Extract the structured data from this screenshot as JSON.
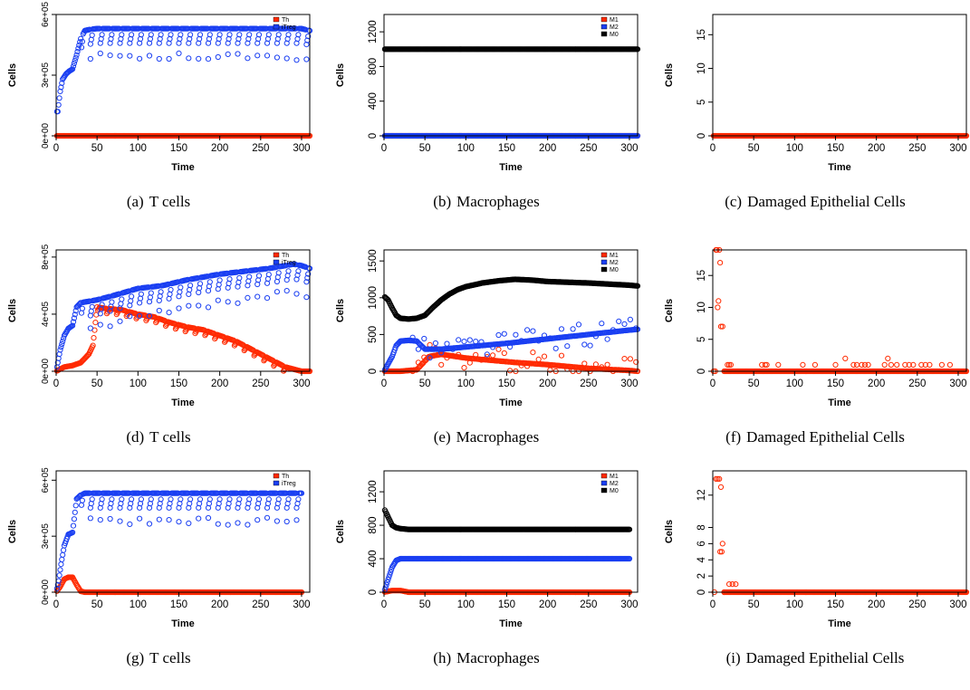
{
  "colors": {
    "Th": "#ff2a00",
    "iTreg": "#1a3ff2",
    "M1": "#ff2a00",
    "M2": "#1a3ff2",
    "M0": "#000000",
    "damaged": "#ff2a00"
  },
  "panels": [
    {
      "id": "(a)",
      "caption": "T cells",
      "chart_data": {
        "type": "scatter",
        "xlabel": "Time",
        "ylabel": "Cells",
        "xlim": [
          0,
          310
        ],
        "ylim": [
          0,
          600000
        ],
        "xticks": [
          0,
          50,
          100,
          150,
          200,
          250,
          300
        ],
        "yticks": [
          0,
          300000,
          600000
        ],
        "ytick_labels": [
          "0e+00",
          "3e+05",
          "6e+05"
        ],
        "legend": {
          "position": "top-right",
          "entries": [
            "Th",
            "iTreg"
          ]
        },
        "series": [
          {
            "name": "Th",
            "color_key": "Th",
            "model": "const",
            "value": 0
          },
          {
            "name": "iTreg",
            "color_key": "iTreg",
            "model": "treg_saw",
            "x": [
              2,
              5,
              8,
              12,
              16,
              20,
              25,
              30,
              35,
              40,
              45,
              50,
              60,
              70,
              80,
              90,
              100,
              130,
              160,
              200,
              250,
              300,
              310
            ],
            "y": [
              120000,
              220000,
              280000,
              305000,
              320000,
              330000,
              400000,
              480000,
              520000,
              525000,
              528000,
              530000,
              530000,
              530000,
              530000,
              530000,
              530000,
              530000,
              530000,
              530000,
              530000,
              530000,
              520000
            ]
          }
        ]
      }
    },
    {
      "id": "(b)",
      "caption": "Macrophages",
      "chart_data": {
        "type": "scatter",
        "xlabel": "Time",
        "ylabel": "Cells",
        "xlim": [
          0,
          310
        ],
        "ylim": [
          0,
          1400
        ],
        "xticks": [
          0,
          50,
          100,
          150,
          200,
          250,
          300
        ],
        "yticks": [
          0,
          400,
          800,
          1200
        ],
        "legend": {
          "position": "top-right",
          "entries": [
            "M1",
            "M2",
            "M0"
          ]
        },
        "series": [
          {
            "name": "M1",
            "color_key": "M1",
            "model": "const",
            "value": 0
          },
          {
            "name": "M2",
            "color_key": "M2",
            "model": "const",
            "value": 0
          },
          {
            "name": "M0",
            "color_key": "M0",
            "model": "const",
            "value": 1000
          }
        ]
      }
    },
    {
      "id": "(c)",
      "caption": "Damaged Epithelial Cells",
      "chart_data": {
        "type": "scatter",
        "xlabel": "Time",
        "ylabel": "Cells",
        "xlim": [
          0,
          310
        ],
        "ylim": [
          0,
          18
        ],
        "xticks": [
          0,
          50,
          100,
          150,
          200,
          250,
          300
        ],
        "yticks": [
          0,
          5,
          10,
          15
        ],
        "series": [
          {
            "name": "Damaged",
            "color_key": "damaged",
            "model": "const",
            "value": 0
          }
        ]
      }
    },
    {
      "id": "(d)",
      "caption": "T cells",
      "chart_data": {
        "type": "scatter",
        "xlabel": "Time",
        "ylabel": "Cells",
        "xlim": [
          0,
          310
        ],
        "ylim": [
          0,
          850000
        ],
        "xticks": [
          0,
          50,
          100,
          150,
          200,
          250,
          300
        ],
        "yticks": [
          0,
          400000,
          800000
        ],
        "ytick_labels": [
          "0e+00",
          "4e+05",
          "8e+05"
        ],
        "legend": {
          "position": "top-right",
          "entries": [
            "Th",
            "iTreg"
          ]
        },
        "series": [
          {
            "name": "Th",
            "color_key": "Th",
            "model": "th_saw",
            "x": [
              0,
              10,
              20,
              30,
              40,
              45,
              50,
              60,
              80,
              100,
              120,
              140,
              160,
              180,
              200,
              220,
              240,
              260,
              280,
              300,
              310
            ],
            "y": [
              0,
              30000,
              40000,
              60000,
              120000,
              180000,
              450000,
              440000,
              430000,
              400000,
              380000,
              340000,
              310000,
              290000,
              250000,
              210000,
              150000,
              90000,
              30000,
              0,
              0
            ]
          },
          {
            "name": "iTreg",
            "color_key": "iTreg",
            "model": "treg_saw",
            "x": [
              0,
              5,
              10,
              15,
              20,
              25,
              30,
              40,
              50,
              70,
              100,
              130,
              160,
              200,
              230,
              260,
              290,
              300,
              310
            ],
            "y": [
              0,
              150000,
              250000,
              300000,
              320000,
              450000,
              480000,
              490000,
              500000,
              530000,
              580000,
              600000,
              640000,
              680000,
              700000,
              720000,
              750000,
              740000,
              720000
            ]
          }
        ]
      }
    },
    {
      "id": "(e)",
      "caption": "Macrophages",
      "chart_data": {
        "type": "scatter",
        "xlabel": "Time",
        "ylabel": "Cells",
        "xlim": [
          0,
          310
        ],
        "ylim": [
          0,
          1650
        ],
        "xticks": [
          0,
          50,
          100,
          150,
          200,
          250,
          300
        ],
        "yticks": [
          0,
          500,
          1000,
          1500
        ],
        "legend": {
          "position": "top-right",
          "entries": [
            "M1",
            "M2",
            "M0"
          ]
        },
        "series": [
          {
            "name": "M1",
            "color_key": "M1",
            "model": "noisy",
            "x": [
              0,
              20,
              40,
              55,
              70,
              100,
              130,
              160,
              200,
              250,
              300,
              310
            ],
            "y": [
              0,
              0,
              20,
              200,
              230,
              180,
              150,
              120,
              90,
              40,
              10,
              0
            ]
          },
          {
            "name": "M2",
            "color_key": "M2",
            "model": "noisy",
            "x": [
              0,
              10,
              15,
              20,
              30,
              40,
              50,
              70,
              100,
              150,
              200,
              250,
              300,
              310
            ],
            "y": [
              0,
              200,
              350,
              410,
              420,
              410,
              300,
              300,
              330,
              380,
              440,
              500,
              560,
              570
            ]
          },
          {
            "name": "M0",
            "color_key": "M0",
            "model": "smooth",
            "x": [
              0,
              5,
              10,
              15,
              20,
              30,
              40,
              50,
              60,
              70,
              80,
              90,
              100,
              120,
              140,
              160,
              180,
              200,
              250,
              300,
              310
            ],
            "y": [
              1020,
              970,
              860,
              760,
              720,
              710,
              720,
              760,
              870,
              970,
              1050,
              1110,
              1150,
              1200,
              1230,
              1250,
              1240,
              1220,
              1200,
              1170,
              1160
            ]
          }
        ]
      }
    },
    {
      "id": "(f)",
      "caption": "Damaged Epithelial Cells",
      "chart_data": {
        "type": "scatter",
        "xlabel": "Time",
        "ylabel": "Cells",
        "xlim": [
          0,
          310
        ],
        "ylim": [
          0,
          19
        ],
        "xticks": [
          0,
          50,
          100,
          150,
          200,
          250,
          300
        ],
        "yticks": [
          0,
          5,
          10,
          15
        ],
        "series": [
          {
            "name": "Damaged",
            "color_key": "damaged",
            "model": "points_then_zero",
            "points": [
              [
                1,
                0
              ],
              [
                3,
                0
              ],
              [
                4,
                19
              ],
              [
                5,
                19
              ],
              [
                6,
                10
              ],
              [
                7,
                11
              ],
              [
                8,
                19
              ],
              [
                9,
                17
              ],
              [
                10,
                7
              ],
              [
                12,
                7
              ],
              [
                18,
                1
              ],
              [
                20,
                1
              ],
              [
                22,
                1
              ],
              [
                60,
                1
              ],
              [
                64,
                1
              ],
              [
                66,
                1
              ],
              [
                80,
                1
              ],
              [
                110,
                1
              ],
              [
                125,
                1
              ],
              [
                150,
                1
              ],
              [
                162,
                2
              ],
              [
                172,
                1
              ],
              [
                176,
                1
              ],
              [
                182,
                1
              ],
              [
                186,
                1
              ],
              [
                190,
                1
              ],
              [
                210,
                1
              ],
              [
                214,
                2
              ],
              [
                218,
                1
              ],
              [
                225,
                1
              ],
              [
                235,
                1
              ],
              [
                240,
                1
              ],
              [
                245,
                1
              ],
              [
                255,
                1
              ],
              [
                260,
                1
              ],
              [
                265,
                1
              ],
              [
                280,
                1
              ],
              [
                290,
                1
              ]
            ]
          }
        ]
      }
    },
    {
      "id": "(g)",
      "caption": "T cells",
      "chart_data": {
        "type": "scatter",
        "xlabel": "Time",
        "ylabel": "Cells",
        "xlim": [
          0,
          310
        ],
        "ylim": [
          0,
          650000
        ],
        "xticks": [
          0,
          50,
          100,
          150,
          200,
          250,
          300
        ],
        "yticks": [
          0,
          300000,
          600000
        ],
        "ytick_labels": [
          "0e+00",
          "3e+05",
          "6e+05"
        ],
        "legend": {
          "position": "top-right",
          "entries": [
            "Th",
            "iTreg"
          ]
        },
        "series": [
          {
            "name": "Th",
            "color_key": "Th",
            "model": "smooth",
            "x": [
              0,
              5,
              10,
              15,
              20,
              25,
              30,
              35,
              300
            ],
            "y": [
              0,
              30000,
              70000,
              80000,
              80000,
              40000,
              5000,
              0,
              0
            ]
          },
          {
            "name": "iTreg",
            "color_key": "iTreg",
            "model": "treg_saw",
            "x": [
              0,
              3,
              6,
              10,
              15,
              20,
              25,
              30,
              35,
              40,
              50,
              100,
              200,
              300
            ],
            "y": [
              0,
              60000,
              150000,
              250000,
              310000,
              320000,
              500000,
              520000,
              530000,
              530000,
              530000,
              530000,
              530000,
              530000
            ]
          }
        ]
      }
    },
    {
      "id": "(h)",
      "caption": "Macrophages",
      "chart_data": {
        "type": "scatter",
        "xlabel": "Time",
        "ylabel": "Cells",
        "xlim": [
          0,
          310
        ],
        "ylim": [
          0,
          1450
        ],
        "xticks": [
          0,
          50,
          100,
          150,
          200,
          250,
          300
        ],
        "yticks": [
          0,
          400,
          800,
          1200
        ],
        "legend": {
          "position": "top-right",
          "entries": [
            "M1",
            "M2",
            "M0"
          ]
        },
        "series": [
          {
            "name": "M1",
            "color_key": "M1",
            "model": "smooth",
            "x": [
              0,
              10,
              20,
              30,
              300
            ],
            "y": [
              0,
              20,
              20,
              0,
              0
            ]
          },
          {
            "name": "M2",
            "color_key": "M2",
            "model": "smooth",
            "x": [
              0,
              5,
              10,
              15,
              20,
              25,
              300
            ],
            "y": [
              0,
              150,
              300,
              380,
              400,
              400,
              400
            ]
          },
          {
            "name": "M0",
            "color_key": "M0",
            "model": "smooth",
            "x": [
              0,
              5,
              10,
              15,
              20,
              30,
              300
            ],
            "y": [
              1000,
              900,
              800,
              770,
              760,
              750,
              750
            ]
          }
        ]
      }
    },
    {
      "id": "(i)",
      "caption": "Damaged Epithelial Cells",
      "chart_data": {
        "type": "scatter",
        "xlabel": "Time",
        "ylabel": "Cells",
        "xlim": [
          0,
          310
        ],
        "ylim": [
          0,
          15
        ],
        "xticks": [
          0,
          50,
          100,
          150,
          200,
          250,
          300
        ],
        "yticks": [
          0,
          2,
          4,
          6,
          8,
          12
        ],
        "series": [
          {
            "name": "Damaged",
            "color_key": "damaged",
            "model": "points_then_zero",
            "points": [
              [
                2,
                0
              ],
              [
                4,
                14
              ],
              [
                6,
                14
              ],
              [
                8,
                14
              ],
              [
                9,
                5
              ],
              [
                10,
                13
              ],
              [
                11,
                5
              ],
              [
                12,
                6
              ],
              [
                14,
                0
              ],
              [
                20,
                1
              ],
              [
                24,
                1
              ],
              [
                28,
                1
              ]
            ]
          }
        ]
      }
    }
  ]
}
